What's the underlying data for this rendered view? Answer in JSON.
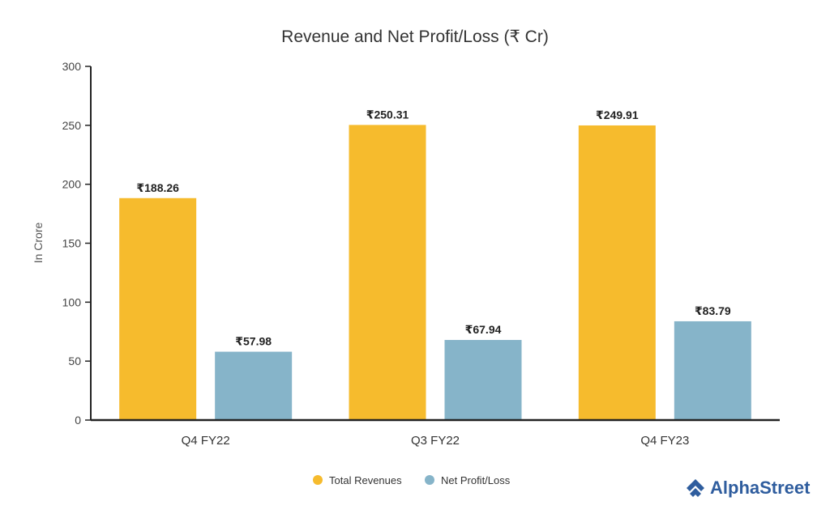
{
  "chart_data": {
    "type": "bar",
    "title": "Revenue and Net Profit/Loss (₹ Cr)",
    "xlabel": "",
    "ylabel": "In Crore",
    "ylim": [
      0,
      300
    ],
    "yticks": [
      0,
      50,
      100,
      150,
      200,
      250,
      300
    ],
    "categories": [
      "Q4 FY22",
      "Q3 FY22",
      "Q4 FY23"
    ],
    "series": [
      {
        "name": "Total Revenues",
        "color": "#f6bb2d",
        "values": [
          188.26,
          250.31,
          249.91
        ],
        "labels": [
          "₹188.26",
          "₹250.31",
          "₹249.91"
        ]
      },
      {
        "name": "Net Profit/Loss",
        "color": "#86b4c9",
        "values": [
          57.98,
          67.94,
          83.79
        ],
        "labels": [
          "₹57.98",
          "₹67.94",
          "₹83.79"
        ]
      }
    ],
    "legend_position": "bottom-center"
  },
  "brand": {
    "name": "AlphaStreet",
    "color": "#2f5d9e"
  }
}
